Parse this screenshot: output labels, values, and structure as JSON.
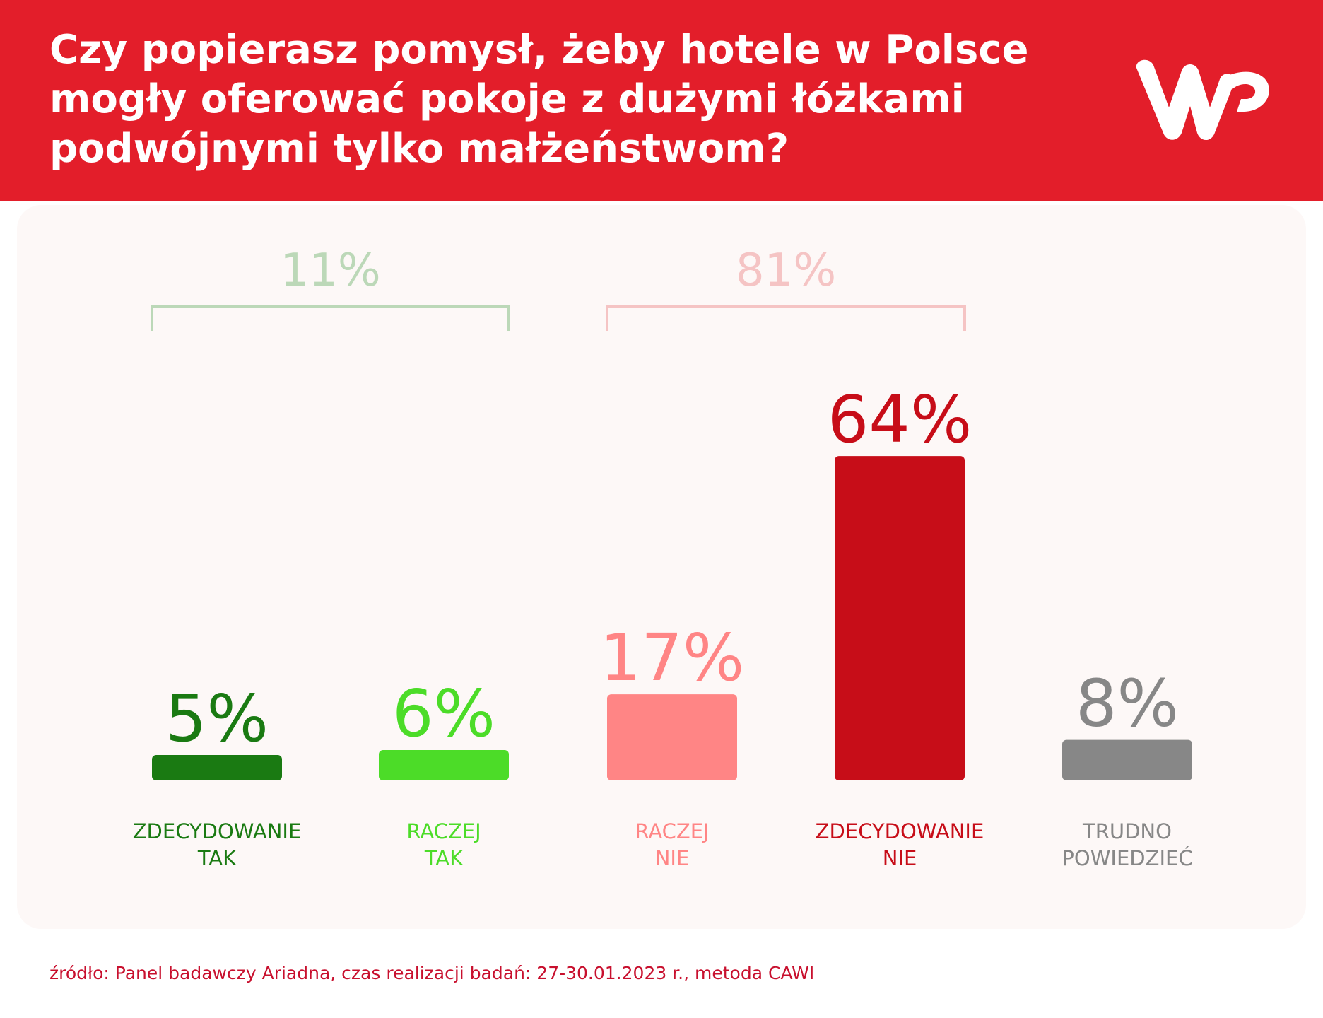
{
  "header": {
    "title_lines": [
      "Czy popierasz pomysł, żeby hotele w Polsce",
      "mogły oferować pokoje z dużymi łóżkami",
      "podwójnymi tylko małżeństwom?"
    ],
    "logo_icon": "wp-logo-icon",
    "background_color": "#e31e2a"
  },
  "chart_data": {
    "type": "bar",
    "title": "Czy popierasz pomysł, żeby hotele w Polsce mogły oferować pokoje z dużymi łóżkami podwójnymi tylko małżeństwom?",
    "categories": [
      [
        "ZDECYDOWANIE",
        "TAK"
      ],
      [
        "RACZEJ",
        "TAK"
      ],
      [
        "RACZEJ",
        "NIE"
      ],
      [
        "ZDECYDOWANIE",
        "NIE"
      ],
      [
        "TRUDNO",
        "POWIEDZIEĆ"
      ]
    ],
    "values": [
      5,
      6,
      17,
      64,
      8
    ],
    "value_labels": [
      "5%",
      "6%",
      "17%",
      "64%",
      "8%"
    ],
    "colors": [
      "#1a7a12",
      "#4cdc28",
      "#ff8585",
      "#c70d18",
      "#878787"
    ],
    "groups": [
      {
        "label": "11%",
        "value": 11,
        "from": 0,
        "to": 1,
        "color": "#bcd8b8"
      },
      {
        "label": "81%",
        "value": 81,
        "from": 2,
        "to": 3,
        "color": "#f5c4c4"
      }
    ],
    "xlabel": "",
    "ylabel": "",
    "ylim": [
      0,
      64
    ],
    "grid": false,
    "legend": "none"
  },
  "footer": {
    "source": "źródło: Panel badawczy Ariadna, czas realizacji badań: 27-30.01.2023 r., metoda CAWI"
  }
}
